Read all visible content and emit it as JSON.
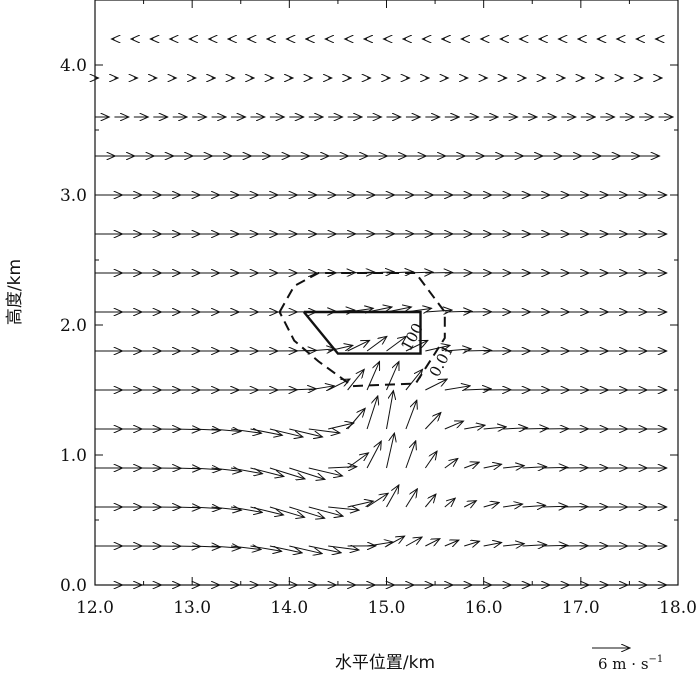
{
  "chart_data": {
    "type": "vector-field",
    "xlabel": "水平位置/km",
    "ylabel": "高度/km",
    "xlim": [
      12.0,
      18.0
    ],
    "ylim": [
      0.0,
      4.5
    ],
    "xticks": [
      12.0,
      13.0,
      14.0,
      15.0,
      16.0,
      17.0,
      18.0
    ],
    "xtick_labels": [
      "12.0",
      "13.0",
      "14.0",
      "15.0",
      "16.0",
      "17.0",
      "18.0"
    ],
    "yticks": [
      0.0,
      1.0,
      2.0,
      3.0,
      4.0
    ],
    "ytick_labels": [
      "0.0",
      "1.0",
      "2.0",
      "3.0",
      "4.0"
    ],
    "reference_vector": {
      "magnitude": 6,
      "label": "6 m · s",
      "exponent": "−1"
    },
    "grid": false,
    "contours": [
      {
        "label": "100",
        "style": "solid",
        "points": [
          [
            14.15,
            2.1
          ],
          [
            15.35,
            2.1
          ],
          [
            15.35,
            1.78
          ],
          [
            14.5,
            1.78
          ],
          [
            14.15,
            2.1
          ]
        ]
      },
      {
        "label": "0.01",
        "style": "dashed",
        "points": [
          [
            13.9,
            2.1
          ],
          [
            14.05,
            2.3
          ],
          [
            14.3,
            2.4
          ],
          [
            15.3,
            2.4
          ],
          [
            15.6,
            2.1
          ],
          [
            15.6,
            1.9
          ],
          [
            15.3,
            1.55
          ],
          [
            14.65,
            1.53
          ],
          [
            14.3,
            1.72
          ],
          [
            14.05,
            1.88
          ],
          [
            13.9,
            2.1
          ]
        ]
      }
    ]
  }
}
